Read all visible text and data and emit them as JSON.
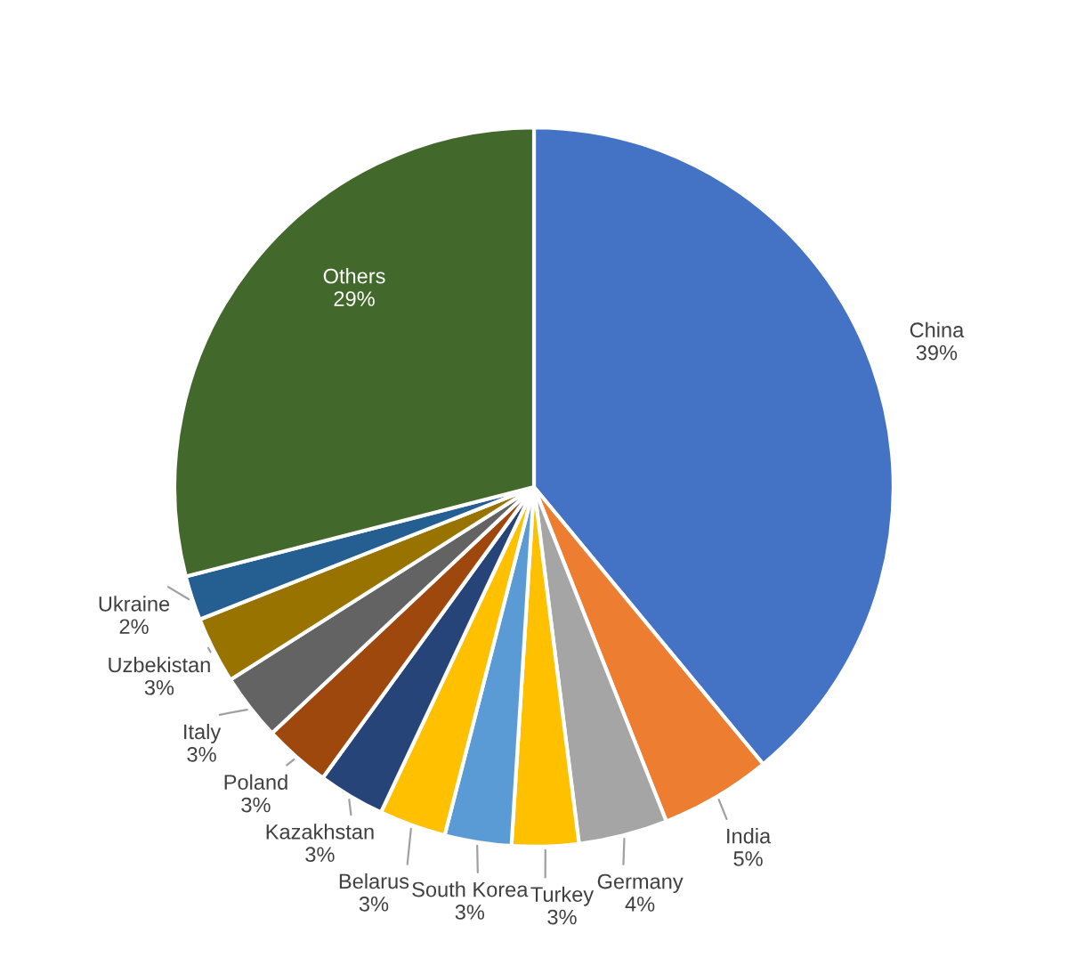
{
  "chart_data": {
    "type": "pie",
    "categories": [
      "China",
      "India",
      "Germany",
      "Turkey",
      "South Korea",
      "Belarus",
      "Kazakhstan",
      "Poland",
      "Italy",
      "Uzbekistan",
      "Ukraine",
      "Others"
    ],
    "values": [
      39,
      5,
      4,
      3,
      3,
      3,
      3,
      3,
      3,
      3,
      2,
      29
    ],
    "value_labels": [
      "39%",
      "5%",
      "4%",
      "3%",
      "3%",
      "3%",
      "3%",
      "3%",
      "3%",
      "3%",
      "2%",
      "29%"
    ],
    "colors": [
      "#4472c4",
      "#ed7d31",
      "#a5a5a5",
      "#ffc000",
      "#5b9bd5",
      "#ffc000",
      "#264478",
      "#9e480e",
      "#636363",
      "#997300",
      "#255e91",
      "#43682b"
    ]
  }
}
